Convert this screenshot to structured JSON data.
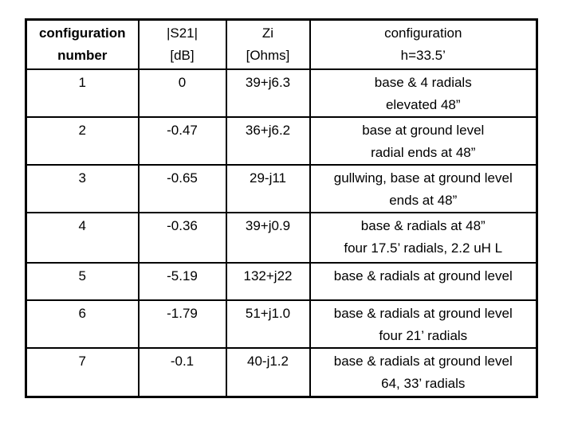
{
  "colors": {
    "background": "#ffffff",
    "text": "#000000",
    "border": "#000000"
  },
  "table": {
    "columns": [
      {
        "key": "number",
        "label": "configuration\nnumber"
      },
      {
        "key": "s21",
        "label": "|S21|\n[dB]"
      },
      {
        "key": "zi",
        "label": "Zi\n[Ohms]"
      },
      {
        "key": "config",
        "label": "configuration\nh=33.5’"
      }
    ],
    "rows": [
      {
        "number": "1",
        "s21": "0",
        "zi": "39+j6.3",
        "config": "base & 4 radials\nelevated 48”"
      },
      {
        "number": "2",
        "s21": "-0.47",
        "zi": "36+j6.2",
        "config": "base at ground level\nradial ends at 48”"
      },
      {
        "number": "3",
        "s21": "-0.65",
        "zi": "29-j11",
        "config": "gullwing, base at ground level\nends at 48”"
      },
      {
        "number": "4",
        "s21": "-0.36",
        "zi": "39+j0.9",
        "config": "base & radials at 48”\nfour 17.5’ radials, 2.2 uH L"
      },
      {
        "number": "5",
        "s21": "-5.19",
        "zi": "132+j22",
        "config": "base & radials at ground level"
      },
      {
        "number": "6",
        "s21": "-1.79",
        "zi": "51+j1.0",
        "config": "base & radials at ground level\nfour 21’ radials"
      },
      {
        "number": "7",
        "s21": "-0.1",
        "zi": "40-j1.2",
        "config": "base & radials at ground level\n64, 33’ radials"
      }
    ]
  }
}
